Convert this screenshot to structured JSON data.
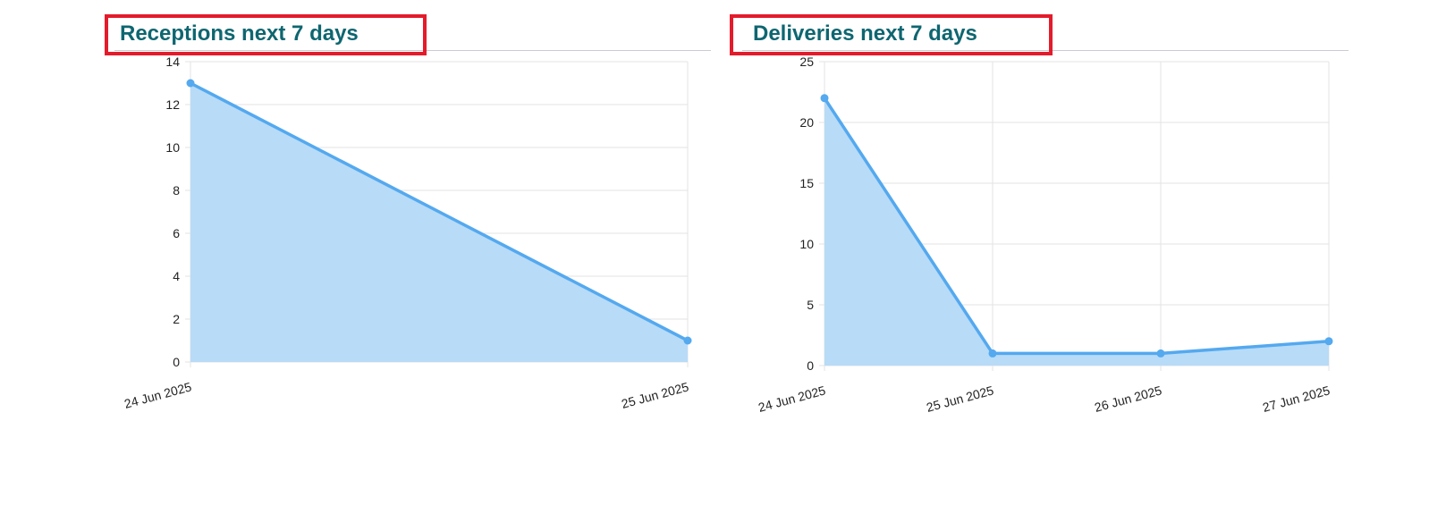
{
  "colors": {
    "title": "#0e6670",
    "highlight_border": "#e41b2b",
    "line": "#54a9ef",
    "fill": "#b8dbf7",
    "grid": "#e3e3e3",
    "tick_text": "#222222"
  },
  "chart_data": [
    {
      "type": "area",
      "title": "Receptions next 7 days",
      "categories": [
        "24 Jun 2025",
        "25 Jun 2025"
      ],
      "series": [
        {
          "values": [
            13,
            1
          ]
        }
      ],
      "ylim": [
        0,
        14
      ],
      "yticks": [
        "14",
        "12",
        "10",
        "8",
        "6",
        "4",
        "2",
        "0"
      ],
      "grid": true,
      "legend": "none"
    },
    {
      "type": "area",
      "title": "Deliveries next 7 days",
      "categories": [
        "24 Jun 2025",
        "25 Jun 2025",
        "26 Jun 2025",
        "27 Jun 2025"
      ],
      "series": [
        {
          "values": [
            22,
            1,
            1,
            2
          ]
        }
      ],
      "ylim": [
        0,
        25
      ],
      "yticks": [
        "25",
        "20",
        "15",
        "10",
        "5",
        "0"
      ],
      "grid": true,
      "legend": "none"
    }
  ]
}
